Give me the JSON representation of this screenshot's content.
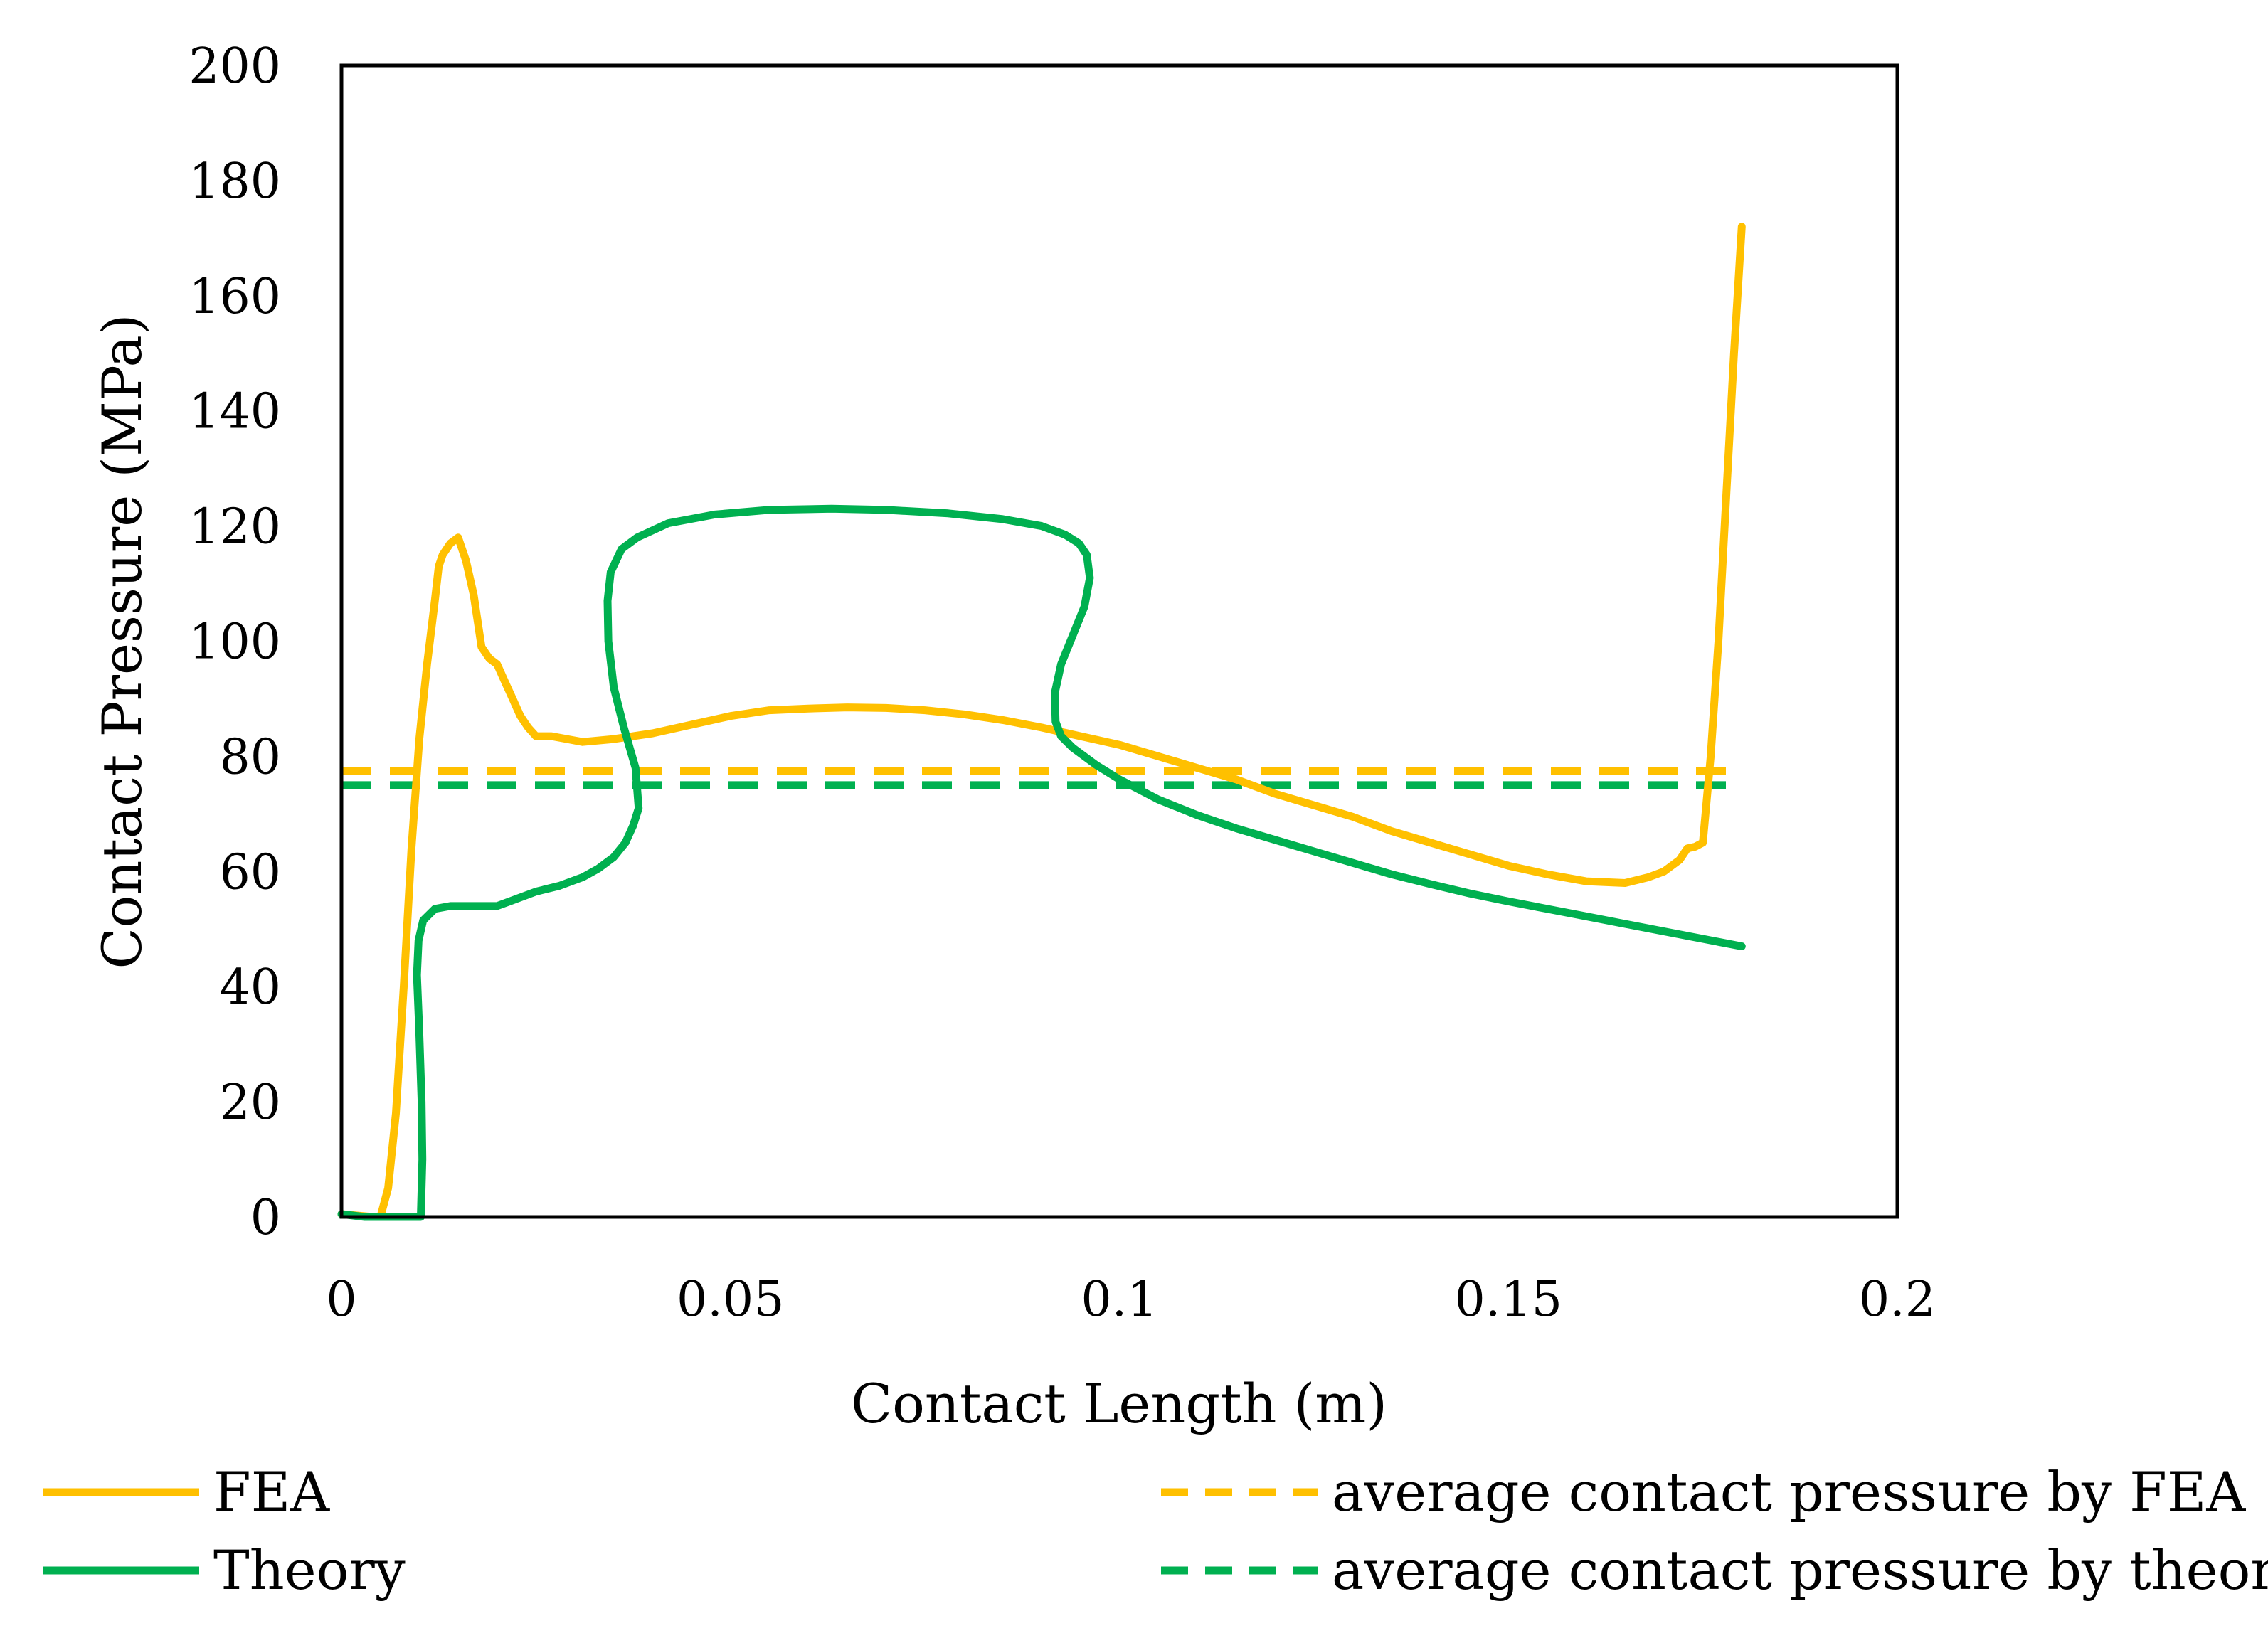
{
  "chart_data": {
    "type": "line",
    "title": "",
    "xlabel": "Contact Length (m)",
    "ylabel": "Contact Pressure (MPa)",
    "xlim": [
      0,
      0.2
    ],
    "ylim": [
      0,
      200
    ],
    "x_ticks": [
      0,
      0.05,
      0.1,
      0.15,
      0.2
    ],
    "x_tick_labels": [
      "0",
      "0.05",
      "0.1",
      "0.15",
      "0.2"
    ],
    "y_ticks": [
      0,
      20,
      40,
      60,
      80,
      100,
      120,
      140,
      160,
      180,
      200
    ],
    "y_tick_labels": [
      "0",
      "20",
      "40",
      "60",
      "80",
      "100",
      "120",
      "140",
      "160",
      "180",
      "200"
    ],
    "grid": false,
    "legend_position": "bottom",
    "series": [
      {
        "name": "FEA",
        "color": "#FFC000",
        "style": "solid",
        "points": [
          [
            0,
            0.5
          ],
          [
            0.004,
            0
          ],
          [
            0.005,
            0
          ],
          [
            0.006,
            5
          ],
          [
            0.007,
            18
          ],
          [
            0.008,
            40
          ],
          [
            0.009,
            64
          ],
          [
            0.01,
            83
          ],
          [
            0.011,
            96
          ],
          [
            0.012,
            107
          ],
          [
            0.0125,
            113
          ],
          [
            0.013,
            115
          ],
          [
            0.014,
            117
          ],
          [
            0.015,
            118
          ],
          [
            0.016,
            114
          ],
          [
            0.017,
            108
          ],
          [
            0.018,
            99
          ],
          [
            0.019,
            97
          ],
          [
            0.02,
            96
          ],
          [
            0.021,
            93
          ],
          [
            0.022,
            90
          ],
          [
            0.023,
            87
          ],
          [
            0.024,
            85
          ],
          [
            0.025,
            83.5
          ],
          [
            0.027,
            83.5
          ],
          [
            0.029,
            83
          ],
          [
            0.031,
            82.5
          ],
          [
            0.035,
            83
          ],
          [
            0.04,
            84
          ],
          [
            0.045,
            85.5
          ],
          [
            0.05,
            87
          ],
          [
            0.055,
            88
          ],
          [
            0.06,
            88.3
          ],
          [
            0.065,
            88.5
          ],
          [
            0.07,
            88.4
          ],
          [
            0.075,
            88
          ],
          [
            0.08,
            87.3
          ],
          [
            0.085,
            86.3
          ],
          [
            0.09,
            85
          ],
          [
            0.095,
            83.5
          ],
          [
            0.1,
            82
          ],
          [
            0.105,
            80
          ],
          [
            0.11,
            78
          ],
          [
            0.115,
            76
          ],
          [
            0.12,
            73.5
          ],
          [
            0.125,
            71.5
          ],
          [
            0.13,
            69.5
          ],
          [
            0.135,
            67
          ],
          [
            0.14,
            65
          ],
          [
            0.145,
            63
          ],
          [
            0.15,
            61
          ],
          [
            0.155,
            59.5
          ],
          [
            0.16,
            58.3
          ],
          [
            0.165,
            58
          ],
          [
            0.168,
            59
          ],
          [
            0.17,
            60
          ],
          [
            0.172,
            62
          ],
          [
            0.173,
            64
          ],
          [
            0.174,
            64.3
          ],
          [
            0.175,
            65
          ],
          [
            0.176,
            80
          ],
          [
            0.177,
            100
          ],
          [
            0.178,
            125
          ],
          [
            0.179,
            150
          ],
          [
            0.18,
            172
          ]
        ]
      },
      {
        "name": "Theory",
        "color": "#00B050",
        "style": "solid",
        "points": [
          [
            0,
            0.5
          ],
          [
            0.003,
            0
          ],
          [
            0.0102,
            0
          ],
          [
            0.0104,
            10
          ],
          [
            0.0103,
            20
          ],
          [
            0.01,
            32
          ],
          [
            0.0097,
            42
          ],
          [
            0.0099,
            48
          ],
          [
            0.0105,
            51.5
          ],
          [
            0.012,
            53.5
          ],
          [
            0.014,
            54
          ],
          [
            0.017,
            54
          ],
          [
            0.02,
            54
          ],
          [
            0.022,
            55
          ],
          [
            0.025,
            56.5
          ],
          [
            0.028,
            57.5
          ],
          [
            0.031,
            59
          ],
          [
            0.033,
            60.5
          ],
          [
            0.035,
            62.5
          ],
          [
            0.0365,
            65
          ],
          [
            0.0375,
            68
          ],
          [
            0.0382,
            71
          ],
          [
            0.0378,
            78
          ],
          [
            0.0363,
            85
          ],
          [
            0.035,
            92
          ],
          [
            0.0343,
            100
          ],
          [
            0.0342,
            107
          ],
          [
            0.0346,
            112
          ],
          [
            0.036,
            116
          ],
          [
            0.038,
            118
          ],
          [
            0.042,
            120.5
          ],
          [
            0.048,
            122
          ],
          [
            0.055,
            122.8
          ],
          [
            0.063,
            123
          ],
          [
            0.07,
            122.8
          ],
          [
            0.078,
            122.2
          ],
          [
            0.085,
            121.2
          ],
          [
            0.09,
            120
          ],
          [
            0.093,
            118.5
          ],
          [
            0.0948,
            117
          ],
          [
            0.0958,
            115
          ],
          [
            0.0962,
            111
          ],
          [
            0.0955,
            106
          ],
          [
            0.094,
            101
          ],
          [
            0.0925,
            96
          ],
          [
            0.0917,
            91
          ],
          [
            0.0918,
            86
          ],
          [
            0.0925,
            83.5
          ],
          [
            0.094,
            81.5
          ],
          [
            0.097,
            78.5
          ],
          [
            0.1,
            76
          ],
          [
            0.105,
            72.5
          ],
          [
            0.11,
            69.8
          ],
          [
            0.115,
            67.5
          ],
          [
            0.12,
            65.5
          ],
          [
            0.125,
            63.5
          ],
          [
            0.13,
            61.5
          ],
          [
            0.135,
            59.5
          ],
          [
            0.14,
            57.8
          ],
          [
            0.145,
            56.2
          ],
          [
            0.15,
            54.8
          ],
          [
            0.155,
            53.5
          ],
          [
            0.16,
            52.2
          ],
          [
            0.165,
            50.9
          ],
          [
            0.17,
            49.6
          ],
          [
            0.175,
            48.3
          ],
          [
            0.18,
            47
          ]
        ]
      },
      {
        "name": "average contact pressure by FEA",
        "color": "#FFC000",
        "style": "dashed",
        "points": [
          [
            0,
            77.5
          ],
          [
            0.18,
            77.5
          ]
        ]
      },
      {
        "name": "average contact pressure by theory",
        "color": "#00B050",
        "style": "dashed",
        "points": [
          [
            0,
            75
          ],
          [
            0.18,
            75
          ]
        ]
      }
    ]
  }
}
